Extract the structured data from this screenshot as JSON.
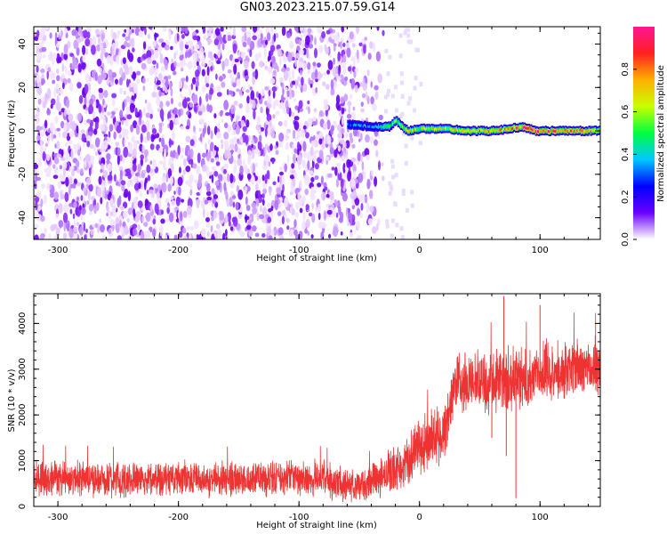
{
  "title": "GN03.2023.215.07.59.G14",
  "chart_data": [
    {
      "type": "heatmap",
      "title": "GN03.2023.215.07.59.G14",
      "xlabel": "Height of straight line (km)",
      "ylabel": "Frequency (Hz)",
      "xlim": [
        -320,
        150
      ],
      "ylim": [
        -50,
        48
      ],
      "x_ticks": [
        "-300",
        "-200",
        "-100",
        "0",
        "100"
      ],
      "y_ticks": [
        "-40",
        "-20",
        "0",
        "20",
        "40"
      ],
      "colorbar": {
        "label": "Normalized spectral amplitude",
        "range": [
          0.0,
          1.0
        ],
        "ticks": [
          "0.0",
          "0.2",
          "0.4",
          "0.6",
          "0.8"
        ],
        "colormap": [
          "#ffffff",
          "#6a00ff",
          "#0000ff",
          "#00c8ff",
          "#00ff40",
          "#c8ff00",
          "#ffb000",
          "#ff2020",
          "#ff1493"
        ]
      },
      "noise_region_x": [
        -320,
        -30
      ],
      "signal_line": {
        "x": [
          -60,
          -40,
          -25,
          -20,
          -15,
          -10,
          0,
          20,
          40,
          60,
          75,
          85,
          95,
          110,
          130,
          150
        ],
        "freq_hz": [
          3,
          2,
          2,
          5,
          2,
          0,
          1,
          1,
          0,
          0,
          1,
          2,
          0,
          0,
          0,
          0
        ],
        "amplitude": [
          0.35,
          0.4,
          0.5,
          0.6,
          0.65,
          0.7,
          0.6,
          0.7,
          0.75,
          0.8,
          0.85,
          0.9,
          0.95,
          0.9,
          0.8,
          0.75
        ]
      },
      "grid": false
    },
    {
      "type": "line",
      "xlabel": "Height of straight line (km)",
      "ylabel": "SNR (10 * v/v)",
      "xlim": [
        -320,
        150
      ],
      "ylim": [
        0,
        4650
      ],
      "x_ticks": [
        "-300",
        "-200",
        "-100",
        "0",
        "100"
      ],
      "y_ticks": [
        "0",
        "1000",
        "2000",
        "3000",
        "4000"
      ],
      "color": "#ee3333",
      "grid": false,
      "series": [
        {
          "x": [
            -320,
            -300,
            -280,
            -260,
            -240,
            -220,
            -200,
            -180,
            -160,
            -140,
            -120,
            -100,
            -80,
            -60,
            -40,
            -30,
            -20,
            -10,
            0,
            10,
            20,
            25,
            30,
            40,
            50,
            60,
            70,
            80,
            90,
            100,
            110,
            120,
            130,
            140,
            150
          ],
          "y": [
            650,
            600,
            620,
            580,
            600,
            610,
            620,
            600,
            590,
            600,
            610,
            620,
            600,
            450,
            500,
            700,
            800,
            1000,
            1300,
            1500,
            1550,
            2200,
            2700,
            2650,
            2700,
            2750,
            2750,
            2800,
            2750,
            2900,
            2950,
            2900,
            3050,
            3000,
            3050
          ],
          "spread": [
            450,
            450,
            450,
            450,
            450,
            450,
            450,
            450,
            450,
            450,
            450,
            450,
            450,
            400,
            450,
            500,
            600,
            650,
            700,
            700,
            700,
            700,
            800,
            800,
            800,
            800,
            800,
            800,
            800,
            800,
            800,
            800,
            750,
            750,
            750
          ]
        }
      ],
      "spike_downs": [
        [
          60,
          1500
        ],
        [
          72,
          1100
        ],
        [
          80,
          180
        ]
      ],
      "peak_annotations": [
        [
          70,
          4600
        ],
        [
          100,
          4400
        ]
      ]
    }
  ]
}
